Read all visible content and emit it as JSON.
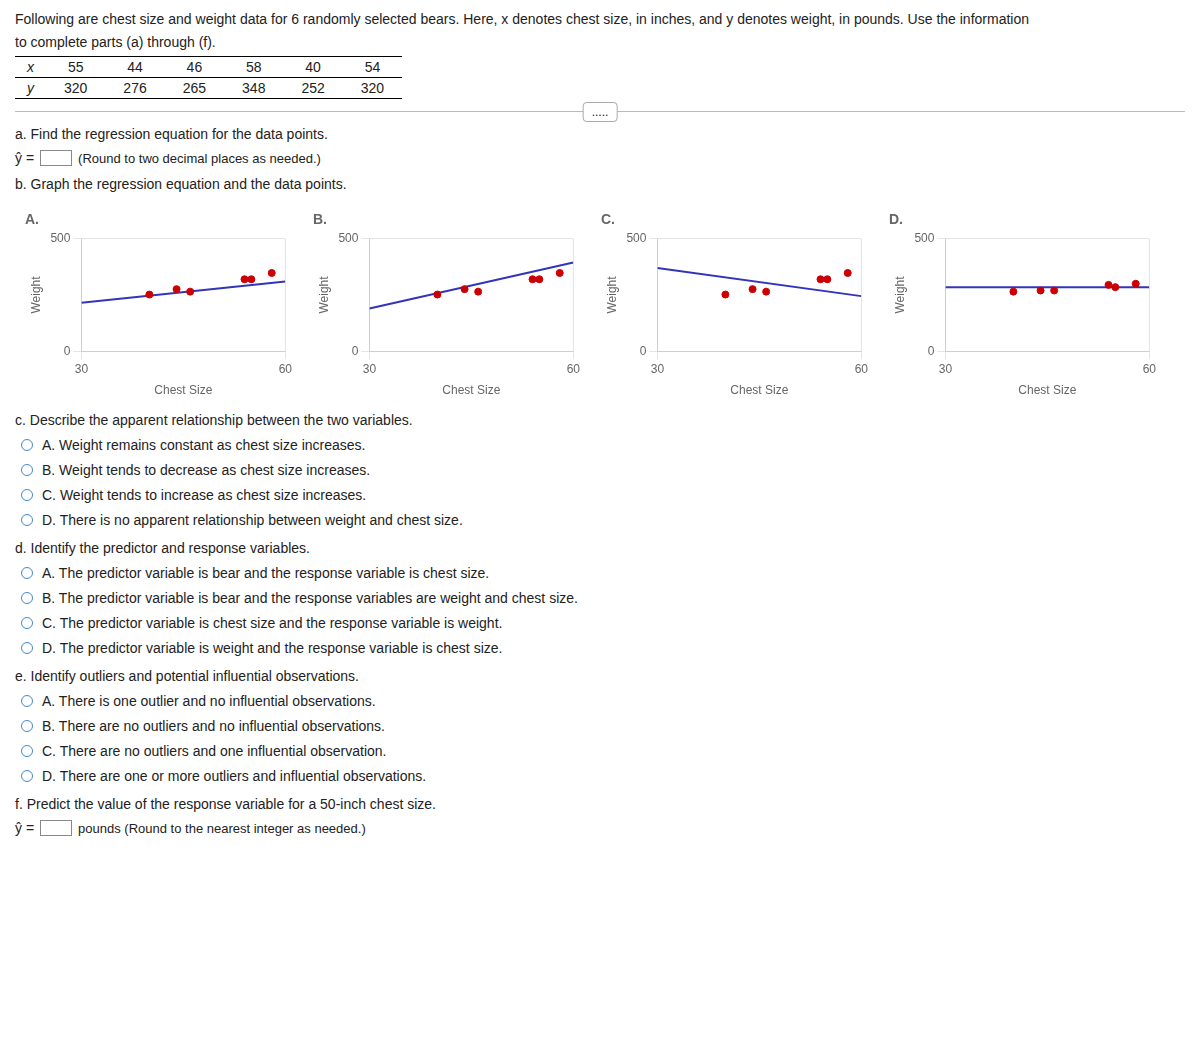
{
  "header": [
    "Following are chest size and weight data for 6 randomly selected bears. Here, x denotes chest size, in inches, and y denotes weight, in pounds. Use the information",
    "to complete parts (a) through (f)."
  ],
  "table": {
    "row_labels": [
      "x",
      "y"
    ],
    "x": [
      55,
      44,
      46,
      58,
      40,
      54
    ],
    "y": [
      320,
      276,
      265,
      348,
      252,
      320
    ]
  },
  "divider": ".....",
  "part_a": {
    "text": "a. Find the regression equation for the data points.",
    "answer_prefix": "ŷ =",
    "hint": "(Round to two decimal places as needed.)"
  },
  "part_b": {
    "text": "b. Graph the regression equation and the data points."
  },
  "part_c": {
    "text": "c. Describe the apparent relationship between the two variables.",
    "options": [
      "A.  Weight remains constant as chest size increases.",
      "B.  Weight tends to decrease as chest size increases.",
      "C.  Weight tends to increase as chest size increases.",
      "D.  There is no apparent relationship between weight and chest size."
    ]
  },
  "part_d": {
    "text": "d. Identify the predictor and response variables.",
    "options": [
      "A.  The predictor variable is bear and the response variable is chest size.",
      "B.  The predictor variable is bear and the response variables are weight and chest size.",
      "C.  The predictor variable is chest size and the response variable is weight.",
      "D.  The predictor variable is weight and the response variable is chest size."
    ]
  },
  "part_e": {
    "text": "e. Identify outliers and potential influential observations.",
    "options": [
      "A.  There is one outlier and no influential observations.",
      "B.  There are no outliers and no influential observations.",
      "C.  There are no outliers and one influential observation.",
      "D.  There are one or more outliers and influential observations."
    ]
  },
  "part_f": {
    "text": "f. Predict the value of the response variable for a 50-inch chest size.",
    "answer_prefix": "ŷ =",
    "hint": "pounds (Round to the nearest integer as needed.)"
  },
  "chart_data": [
    {
      "type": "scatter",
      "title": "A.",
      "xlabel": "Chest Size",
      "ylabel": "Weight",
      "xlim": [
        30,
        60
      ],
      "ylim": [
        0,
        500
      ],
      "xticks": [
        30,
        60
      ],
      "yticks": [
        0,
        500
      ],
      "grid": true,
      "series": [
        {
          "type": "line",
          "color": "#3333bb",
          "x": [
            30,
            60
          ],
          "values": [
            215,
            310
          ]
        },
        {
          "type": "scatter",
          "color": "#cc0000",
          "x": [
            55,
            44,
            46,
            58,
            40,
            54
          ],
          "values": [
            320,
            276,
            265,
            348,
            252,
            320
          ]
        }
      ]
    },
    {
      "type": "scatter",
      "title": "B.",
      "xlabel": "Chest Size",
      "ylabel": "Weight",
      "xlim": [
        30,
        60
      ],
      "ylim": [
        0,
        500
      ],
      "xticks": [
        30,
        60
      ],
      "yticks": [
        0,
        500
      ],
      "grid": true,
      "series": [
        {
          "type": "line",
          "color": "#3333bb",
          "x": [
            30,
            60
          ],
          "values": [
            190,
            395
          ]
        },
        {
          "type": "scatter",
          "color": "#cc0000",
          "x": [
            55,
            44,
            46,
            58,
            40,
            54
          ],
          "values": [
            320,
            276,
            265,
            348,
            252,
            320
          ]
        }
      ]
    },
    {
      "type": "scatter",
      "title": "C.",
      "xlabel": "Chest Size",
      "ylabel": "Weight",
      "xlim": [
        30,
        60
      ],
      "ylim": [
        0,
        500
      ],
      "xticks": [
        30,
        60
      ],
      "yticks": [
        0,
        500
      ],
      "grid": true,
      "series": [
        {
          "type": "line",
          "color": "#3333bb",
          "x": [
            30,
            60
          ],
          "values": [
            370,
            245
          ]
        },
        {
          "type": "scatter",
          "color": "#cc0000",
          "x": [
            55,
            44,
            46,
            58,
            40,
            54
          ],
          "values": [
            320,
            276,
            265,
            348,
            252,
            320
          ]
        }
      ]
    },
    {
      "type": "scatter",
      "title": "D.",
      "xlabel": "Chest Size",
      "ylabel": "Weight",
      "xlim": [
        30,
        60
      ],
      "ylim": [
        0,
        500
      ],
      "xticks": [
        30,
        60
      ],
      "yticks": [
        0,
        500
      ],
      "grid": true,
      "series": [
        {
          "type": "line",
          "color": "#3333bb",
          "x": [
            30,
            60
          ],
          "values": [
            285,
            285
          ]
        },
        {
          "type": "scatter",
          "color": "#cc0000",
          "x": [
            55,
            44,
            46,
            58,
            40,
            54
          ],
          "values": [
            285,
            270,
            270,
            300,
            265,
            295
          ]
        }
      ]
    }
  ]
}
